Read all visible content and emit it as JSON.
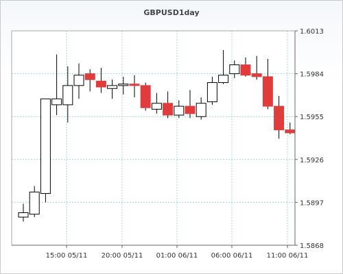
{
  "chart_data": {
    "type": "candlestick",
    "title": "GBPUSD1day",
    "colors": {
      "up_fill": "#ffffff",
      "down_fill": "#e03c3c",
      "outline": "#000000",
      "grid": "#9fd6d6",
      "plot_bg": "#ffffff"
    },
    "grid": true,
    "y_axis": {
      "position": "right",
      "ylim": [
        1.5868,
        1.6013
      ],
      "ticks": [
        "1.6013",
        "1.5984",
        "1.5955",
        "1.5926",
        "1.5897",
        "1.5868"
      ]
    },
    "x_axis": {
      "ticks": [
        "15:00 05/11",
        "20:00 05/11",
        "01:00 06/11",
        "06:00 06/11",
        "11:00 06/11"
      ]
    },
    "candles": [
      {
        "open": 1.5887,
        "high": 1.5896,
        "low": 1.5884,
        "close": 1.589
      },
      {
        "open": 1.5889,
        "high": 1.5908,
        "low": 1.5887,
        "close": 1.5904
      },
      {
        "open": 1.5903,
        "high": 1.5966,
        "low": 1.5897,
        "close": 1.5967
      },
      {
        "open": 1.5963,
        "high": 1.5997,
        "low": 1.5956,
        "close": 1.5967
      },
      {
        "open": 1.5963,
        "high": 1.5989,
        "low": 1.5951,
        "close": 1.5976
      },
      {
        "open": 1.5976,
        "high": 1.5991,
        "low": 1.5967,
        "close": 1.5983
      },
      {
        "open": 1.5984,
        "high": 1.5987,
        "low": 1.5972,
        "close": 1.598
      },
      {
        "open": 1.5979,
        "high": 1.5988,
        "low": 1.5971,
        "close": 1.5975
      },
      {
        "open": 1.5974,
        "high": 1.598,
        "low": 1.5967,
        "close": 1.5976
      },
      {
        "open": 1.5976,
        "high": 1.5982,
        "low": 1.597,
        "close": 1.5977
      },
      {
        "open": 1.5977,
        "high": 1.5983,
        "low": 1.5968,
        "close": 1.5976
      },
      {
        "open": 1.5976,
        "high": 1.5978,
        "low": 1.5959,
        "close": 1.5961
      },
      {
        "open": 1.596,
        "high": 1.5971,
        "low": 1.5957,
        "close": 1.5964
      },
      {
        "open": 1.5964,
        "high": 1.5972,
        "low": 1.5954,
        "close": 1.5956
      },
      {
        "open": 1.5956,
        "high": 1.5966,
        "low": 1.5954,
        "close": 1.5962
      },
      {
        "open": 1.5962,
        "high": 1.5973,
        "low": 1.5954,
        "close": 1.5957
      },
      {
        "open": 1.5955,
        "high": 1.5968,
        "low": 1.5953,
        "close": 1.5964
      },
      {
        "open": 1.5965,
        "high": 1.5982,
        "low": 1.5963,
        "close": 1.5978
      },
      {
        "open": 1.5978,
        "high": 1.6,
        "low": 1.5977,
        "close": 1.5983
      },
      {
        "open": 1.5984,
        "high": 1.5993,
        "low": 1.5981,
        "close": 1.599
      },
      {
        "open": 1.599,
        "high": 1.5995,
        "low": 1.5982,
        "close": 1.5983
      },
      {
        "open": 1.5984,
        "high": 1.5996,
        "low": 1.598,
        "close": 1.5982
      },
      {
        "open": 1.5982,
        "high": 1.5994,
        "low": 1.596,
        "close": 1.5962
      },
      {
        "open": 1.5962,
        "high": 1.5969,
        "low": 1.594,
        "close": 1.5946
      },
      {
        "open": 1.5946,
        "high": 1.5951,
        "low": 1.5943,
        "close": 1.5944
      }
    ]
  }
}
